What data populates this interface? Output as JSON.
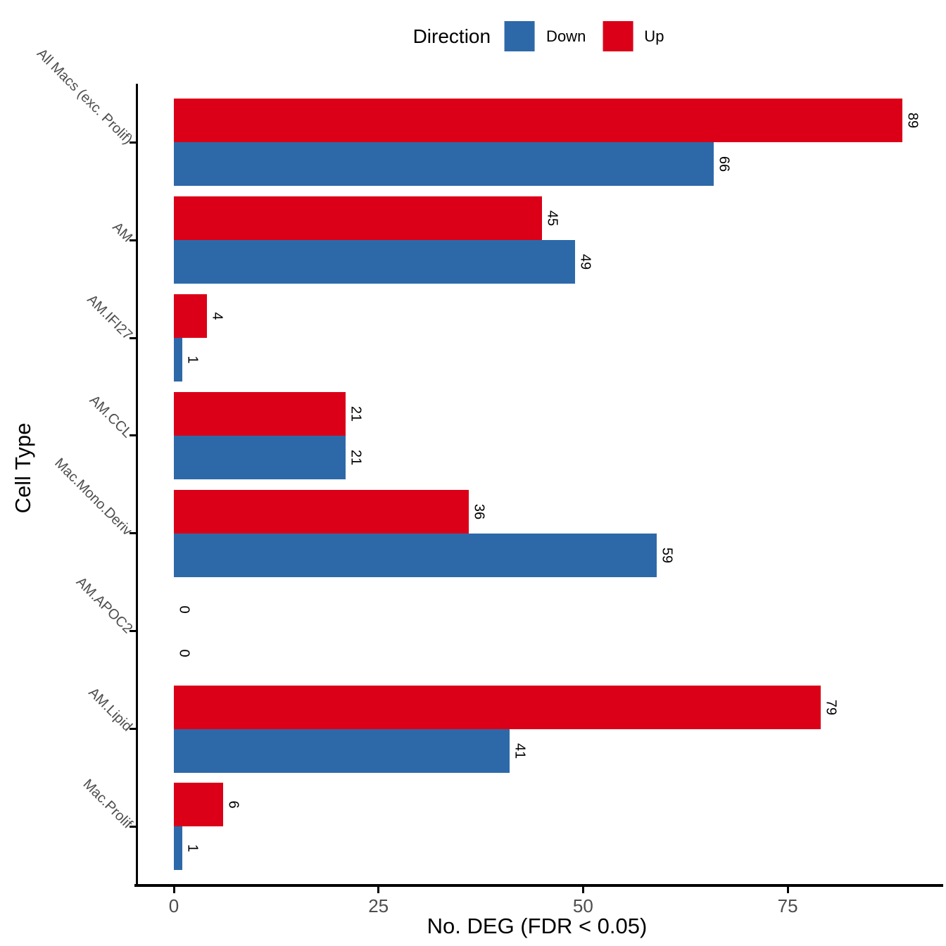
{
  "legend": {
    "title": "Direction",
    "items": [
      {
        "label": "Down",
        "color": "#2D69A9"
      },
      {
        "label": "Up",
        "color": "#DB0018"
      }
    ]
  },
  "axes": {
    "x_title": "No. DEG (FDR < 0.05)",
    "y_title": "Cell Type"
  },
  "chart_data": {
    "type": "bar",
    "orientation": "horizontal",
    "title": "",
    "xlabel": "No. DEG (FDR < 0.05)",
    "ylabel": "Cell Type",
    "categories": [
      "All Macs (exc. Prolif)",
      "AM",
      "AM.IFI27",
      "AM.CCL",
      "Mac.Mono.Deriv",
      "AM.APOC2",
      "AM.Lipid",
      "Mac.Prolif"
    ],
    "series": [
      {
        "name": "Up",
        "color": "#DB0018",
        "values": [
          89,
          45,
          4,
          21,
          36,
          0,
          79,
          6
        ]
      },
      {
        "name": "Down",
        "color": "#2D69A9",
        "values": [
          66,
          49,
          1,
          21,
          59,
          0,
          41,
          1
        ]
      }
    ],
    "x_ticks": [
      0,
      25,
      50,
      75
    ],
    "xlim": [
      -4.5,
      93.5
    ],
    "bar_value_labels": true,
    "grid": false,
    "legend_position": "top"
  }
}
